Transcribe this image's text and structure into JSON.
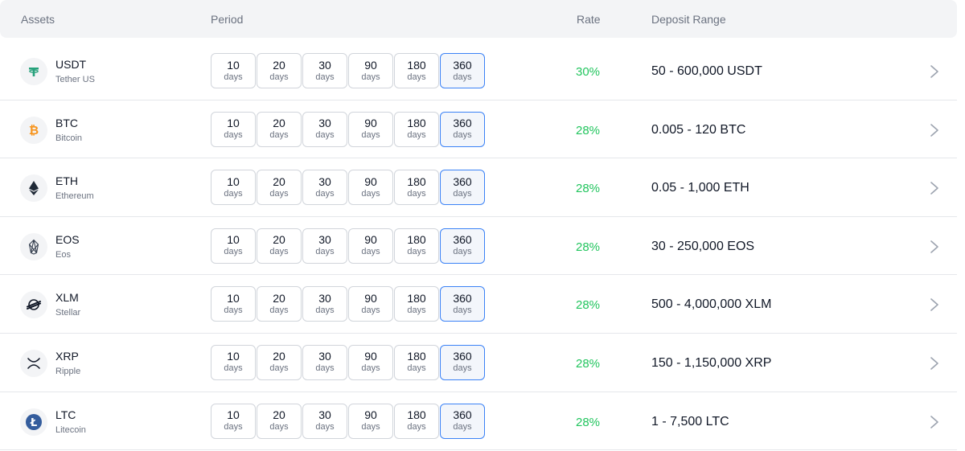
{
  "header": {
    "assets": "Assets",
    "period": "Period",
    "rate": "Rate",
    "deposit_range": "Deposit Range"
  },
  "period_unit": "days",
  "selected_period": "360",
  "rows": [
    {
      "symbol": "USDT",
      "name": "Tether US",
      "icon": "tether-icon",
      "periods": [
        "10",
        "20",
        "30",
        "90",
        "180",
        "360"
      ],
      "rate": "30%",
      "range": "50 - 600,000 USDT"
    },
    {
      "symbol": "BTC",
      "name": "Bitcoin",
      "icon": "bitcoin-icon",
      "periods": [
        "10",
        "20",
        "30",
        "90",
        "180",
        "360"
      ],
      "rate": "28%",
      "range": "0.005 - 120 BTC"
    },
    {
      "symbol": "ETH",
      "name": "Ethereum",
      "icon": "ethereum-icon",
      "periods": [
        "10",
        "20",
        "30",
        "90",
        "180",
        "360"
      ],
      "rate": "28%",
      "range": "0.05 - 1,000 ETH"
    },
    {
      "symbol": "EOS",
      "name": "Eos",
      "icon": "eos-icon",
      "periods": [
        "10",
        "20",
        "30",
        "90",
        "180",
        "360"
      ],
      "rate": "28%",
      "range": "30 - 250,000 EOS"
    },
    {
      "symbol": "XLM",
      "name": "Stellar",
      "icon": "stellar-icon",
      "periods": [
        "10",
        "20",
        "30",
        "90",
        "180",
        "360"
      ],
      "rate": "28%",
      "range": "500 - 4,000,000 XLM"
    },
    {
      "symbol": "XRP",
      "name": "Ripple",
      "icon": "ripple-icon",
      "periods": [
        "10",
        "20",
        "30",
        "90",
        "180",
        "360"
      ],
      "rate": "28%",
      "range": "150 - 1,150,000 XRP"
    },
    {
      "symbol": "LTC",
      "name": "Litecoin",
      "icon": "litecoin-icon",
      "periods": [
        "10",
        "20",
        "30",
        "90",
        "180",
        "360"
      ],
      "rate": "28%",
      "range": "1 - 7,500 LTC"
    }
  ],
  "colors": {
    "rate_green": "#22c55e",
    "selected_border": "#3b82f6",
    "tether": "#26a17b",
    "bitcoin": "#f7931a",
    "litecoin": "#345d9d"
  }
}
